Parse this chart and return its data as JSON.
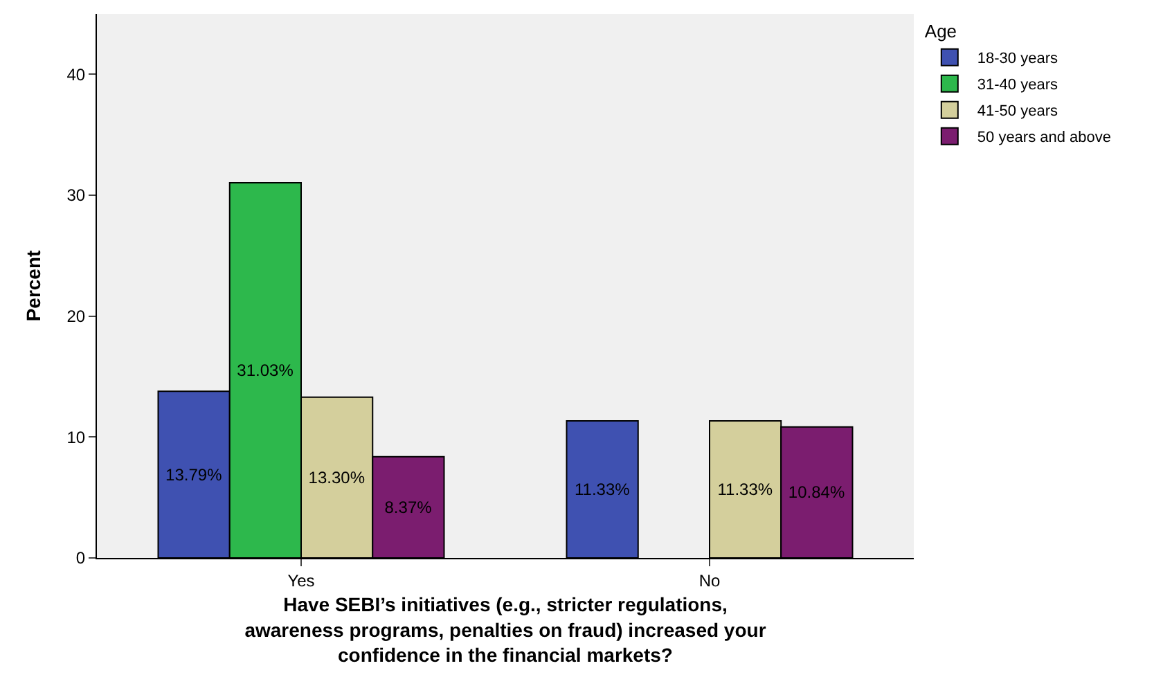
{
  "chart_data": {
    "type": "bar",
    "xlabel": "Have SEBI’s initiatives (e.g., stricter regulations, awareness programs, penalties on fraud) increased your confidence in the financial markets?",
    "ylabel": "Percent",
    "legend_title": "Age",
    "categories": [
      "Yes",
      "No"
    ],
    "series": [
      {
        "name": "18-30 years",
        "color": "#3f51b1",
        "values": [
          13.79,
          11.33
        ],
        "value_labels": [
          "13.79%",
          "11.33%"
        ]
      },
      {
        "name": "31-40 years",
        "color": "#2db84c",
        "values": [
          31.03,
          null
        ],
        "value_labels": [
          "31.03%",
          null
        ]
      },
      {
        "name": "41-50 years",
        "color": "#d4cf9c",
        "values": [
          13.3,
          11.33
        ],
        "value_labels": [
          "13.30%",
          "11.33%"
        ]
      },
      {
        "name": "50 years and above",
        "color": "#7b1d6f",
        "values": [
          8.37,
          10.84
        ],
        "value_labels": [
          "8.37%",
          "10.84%"
        ]
      }
    ],
    "ylim": [
      0,
      45
    ],
    "yticks": [
      0,
      10,
      20,
      30,
      40
    ],
    "grid": false,
    "legend": "top right"
  }
}
